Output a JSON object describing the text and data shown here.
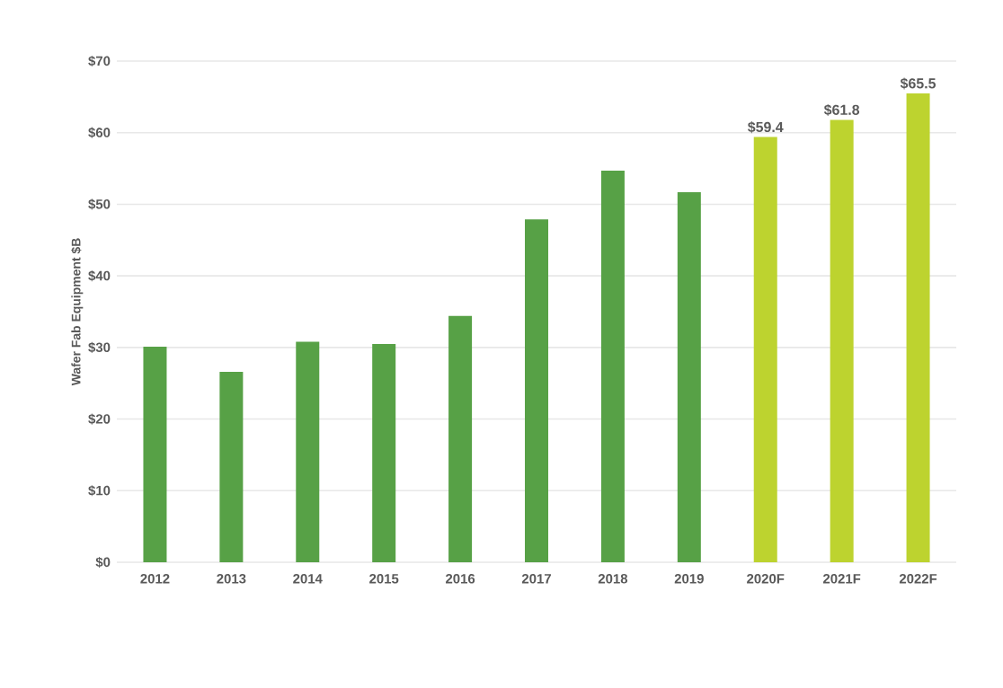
{
  "chart_data": {
    "type": "bar",
    "ylabel": "Wafer Fab Equipment $B",
    "categories": [
      "2012",
      "2013",
      "2014",
      "2015",
      "2016",
      "2017",
      "2018",
      "2019",
      "2020F",
      "2021F",
      "2022F"
    ],
    "values": [
      30.1,
      26.6,
      30.8,
      30.5,
      34.4,
      47.9,
      54.7,
      51.7,
      59.4,
      61.8,
      65.5
    ],
    "colors": [
      "#57a146",
      "#57a146",
      "#57a146",
      "#57a146",
      "#57a146",
      "#57a146",
      "#57a146",
      "#57a146",
      "#bdd32f",
      "#bdd32f",
      "#bdd32f"
    ],
    "value_labels": [
      null,
      null,
      null,
      null,
      null,
      null,
      null,
      null,
      "$59.4",
      "$61.8",
      "$65.5"
    ],
    "ylim": [
      0,
      70
    ],
    "yticks": [
      {
        "value": 0,
        "label": "$0"
      },
      {
        "value": 10,
        "label": "$10"
      },
      {
        "value": 20,
        "label": "$20"
      },
      {
        "value": 30,
        "label": "$30"
      },
      {
        "value": 40,
        "label": "$40"
      },
      {
        "value": 50,
        "label": "$50"
      },
      {
        "value": 60,
        "label": "$60"
      },
      {
        "value": 70,
        "label": "$70"
      }
    ],
    "grid": "y"
  }
}
